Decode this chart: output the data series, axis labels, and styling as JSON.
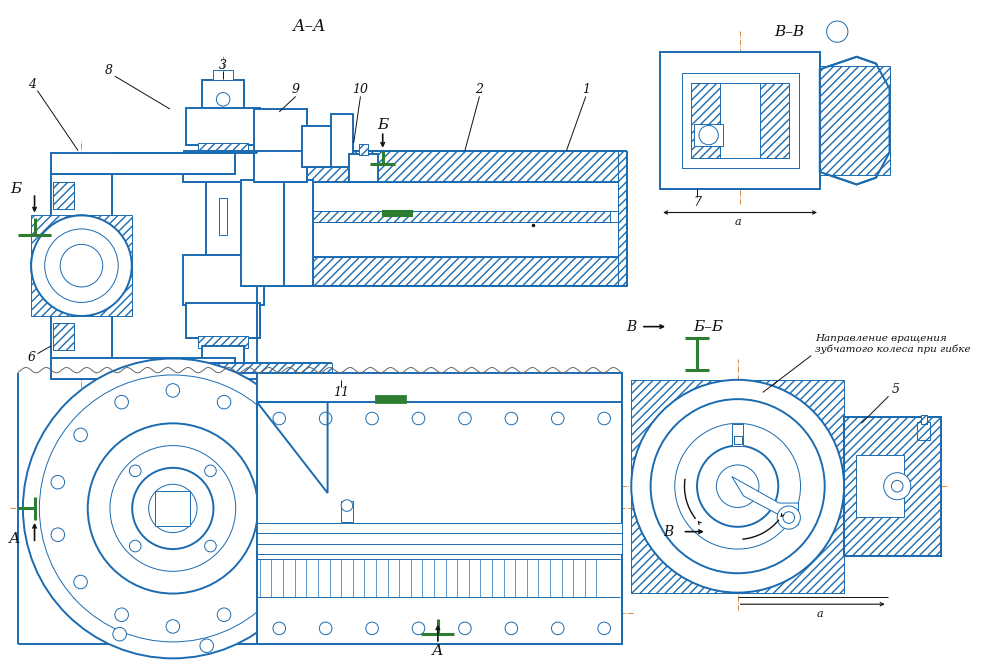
{
  "bg_color": "#FFFFFF",
  "lc": "#1B6BB0",
  "lc2": "#1565C0",
  "gc": "#2E7D32",
  "oc": "#C87820",
  "tc": "#111111",
  "hc": "#1B6BB0",
  "lw_thin": 0.7,
  "lw_med": 1.4,
  "lw_thick": 2.2,
  "title_AA": "А–А",
  "title_BB": "Б–Б",
  "title_VV": "В–В",
  "annotation": "Направление вращения\nзубчатого колеса при гибке"
}
